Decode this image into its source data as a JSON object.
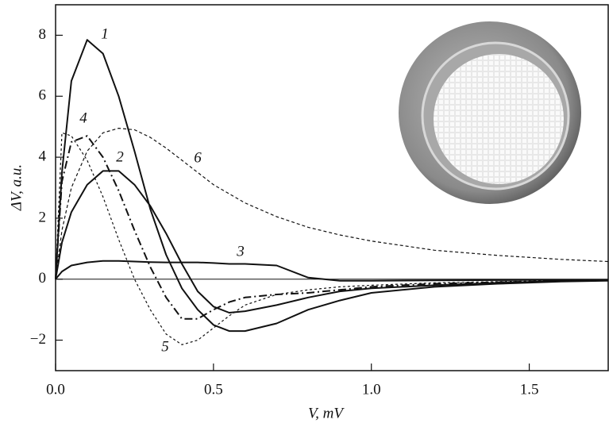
{
  "chart_data": {
    "type": "line",
    "x_label": "V, mV",
    "y_label": "ΔV, a.u.",
    "x": [
      0,
      0.02,
      0.05,
      0.1,
      0.15,
      0.2,
      0.25,
      0.3,
      0.35,
      0.4,
      0.45,
      0.5,
      0.55,
      0.6,
      0.7,
      0.8,
      0.9,
      1.0,
      1.2,
      1.4,
      1.6,
      1.75
    ],
    "series": [
      {
        "name": "1",
        "color": "#111",
        "style": "solid",
        "values": [
          0,
          3.5,
          6.5,
          7.85,
          7.4,
          6.0,
          4.2,
          2.3,
          0.8,
          -0.3,
          -1.0,
          -1.5,
          -1.7,
          -1.7,
          -1.45,
          -1.0,
          -0.7,
          -0.45,
          -0.25,
          -0.15,
          -0.08,
          -0.05
        ]
      },
      {
        "name": "2",
        "color": "#111",
        "style": "solid",
        "values": [
          0,
          1.2,
          2.2,
          3.1,
          3.55,
          3.55,
          3.1,
          2.4,
          1.5,
          0.5,
          -0.4,
          -0.9,
          -1.1,
          -1.05,
          -0.85,
          -0.6,
          -0.4,
          -0.3,
          -0.2,
          -0.12,
          -0.06,
          -0.03
        ]
      },
      {
        "name": "3",
        "color": "#111",
        "style": "solid",
        "values": [
          0,
          0.25,
          0.45,
          0.55,
          0.6,
          0.6,
          0.58,
          0.56,
          0.55,
          0.55,
          0.55,
          0.53,
          0.5,
          0.5,
          0.45,
          0.05,
          -0.05,
          -0.05,
          -0.04,
          -0.03,
          -0.02,
          -0.02
        ]
      },
      {
        "name": "4",
        "color": "#111",
        "style": "dashdot",
        "values": [
          0,
          3.2,
          4.5,
          4.7,
          4.0,
          2.9,
          1.6,
          0.4,
          -0.6,
          -1.3,
          -1.3,
          -1.0,
          -0.75,
          -0.6,
          -0.5,
          -0.45,
          -0.35,
          -0.25,
          -0.15,
          -0.1,
          -0.06,
          -0.04
        ]
      },
      {
        "name": "5",
        "color": "#111",
        "style": "shortdash",
        "values": [
          0,
          4.8,
          4.7,
          3.9,
          2.7,
          1.3,
          0,
          -1.0,
          -1.8,
          -2.15,
          -2.0,
          -1.6,
          -1.2,
          -0.85,
          -0.5,
          -0.35,
          -0.25,
          -0.2,
          -0.12,
          -0.08,
          -0.05,
          -0.03
        ]
      },
      {
        "name": "6",
        "color": "#111",
        "style": "dash",
        "values": [
          0,
          1.6,
          3.0,
          4.2,
          4.8,
          4.95,
          4.9,
          4.65,
          4.3,
          3.9,
          3.5,
          3.1,
          2.8,
          2.5,
          2.05,
          1.7,
          1.45,
          1.25,
          0.95,
          0.78,
          0.65,
          0.58
        ]
      }
    ],
    "xlim": [
      0,
      1.75
    ],
    "ylim": [
      -3,
      9
    ],
    "xticks": [
      {
        "value": 0,
        "label": "0.0"
      },
      {
        "value": 0.5,
        "label": "0.5"
      },
      {
        "value": 1,
        "label": "1.0"
      },
      {
        "value": 1.5,
        "label": "1.5"
      }
    ],
    "yticks": [
      {
        "value": -2,
        "label": "−2"
      },
      0,
      2,
      4,
      6,
      8
    ]
  }
}
